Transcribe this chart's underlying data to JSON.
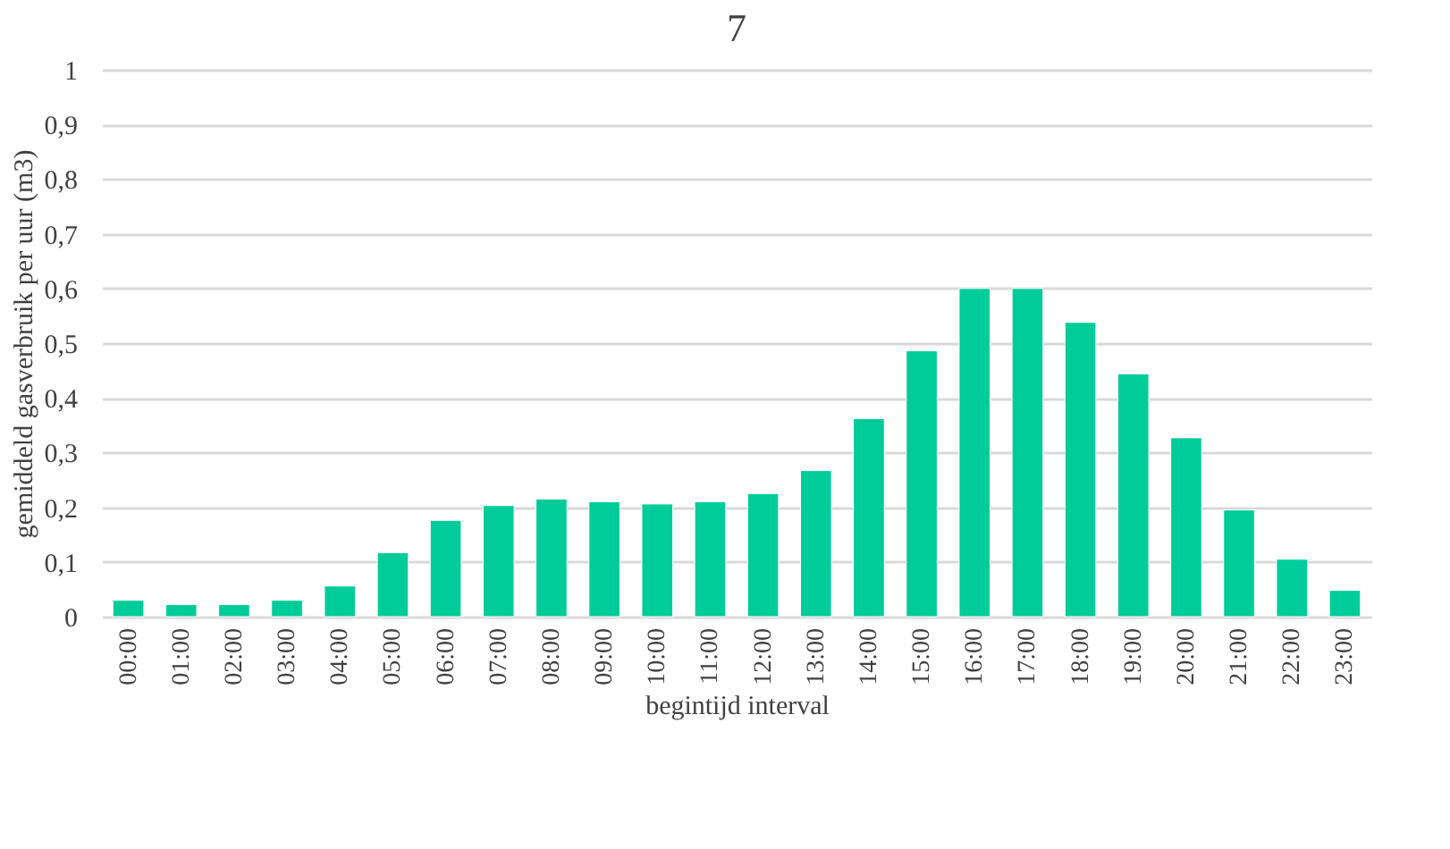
{
  "chart_data": {
    "type": "bar",
    "title": "7",
    "xlabel": "begintijd interval",
    "ylabel": "gemiddeld  gasverbruik per uur (m3)",
    "categories": [
      "00:00",
      "01:00",
      "02:00",
      "03:00",
      "04:00",
      "05:00",
      "06:00",
      "07:00",
      "08:00",
      "09:00",
      "10:00",
      "11:00",
      "12:00",
      "13:00",
      "14:00",
      "15:00",
      "16:00",
      "17:00",
      "18:00",
      "19:00",
      "20:00",
      "21:00",
      "22:00",
      "23:00"
    ],
    "values": [
      0.03,
      0.022,
      0.022,
      0.03,
      0.056,
      0.117,
      0.176,
      0.203,
      0.215,
      0.21,
      0.206,
      0.21,
      0.225,
      0.267,
      0.362,
      0.486,
      0.6,
      0.6,
      0.538,
      0.444,
      0.327,
      0.195,
      0.105,
      0.048
    ],
    "color": "#00cc99",
    "ylim": [
      0,
      1
    ],
    "yticks": [
      0,
      {
        "value": 0.1,
        "label": "0,1"
      },
      {
        "value": 0.2,
        "label": "0,2"
      },
      {
        "value": 0.3,
        "label": "0,3"
      },
      {
        "value": 0.4,
        "label": "0,4"
      },
      {
        "value": 0.5,
        "label": "0,5"
      },
      {
        "value": 0.6,
        "label": "0,6"
      },
      {
        "value": 0.7,
        "label": "0,7"
      },
      {
        "value": 0.8,
        "label": "0,8"
      },
      {
        "value": 0.9,
        "label": "0,9"
      },
      1
    ],
    "grid": "y"
  }
}
